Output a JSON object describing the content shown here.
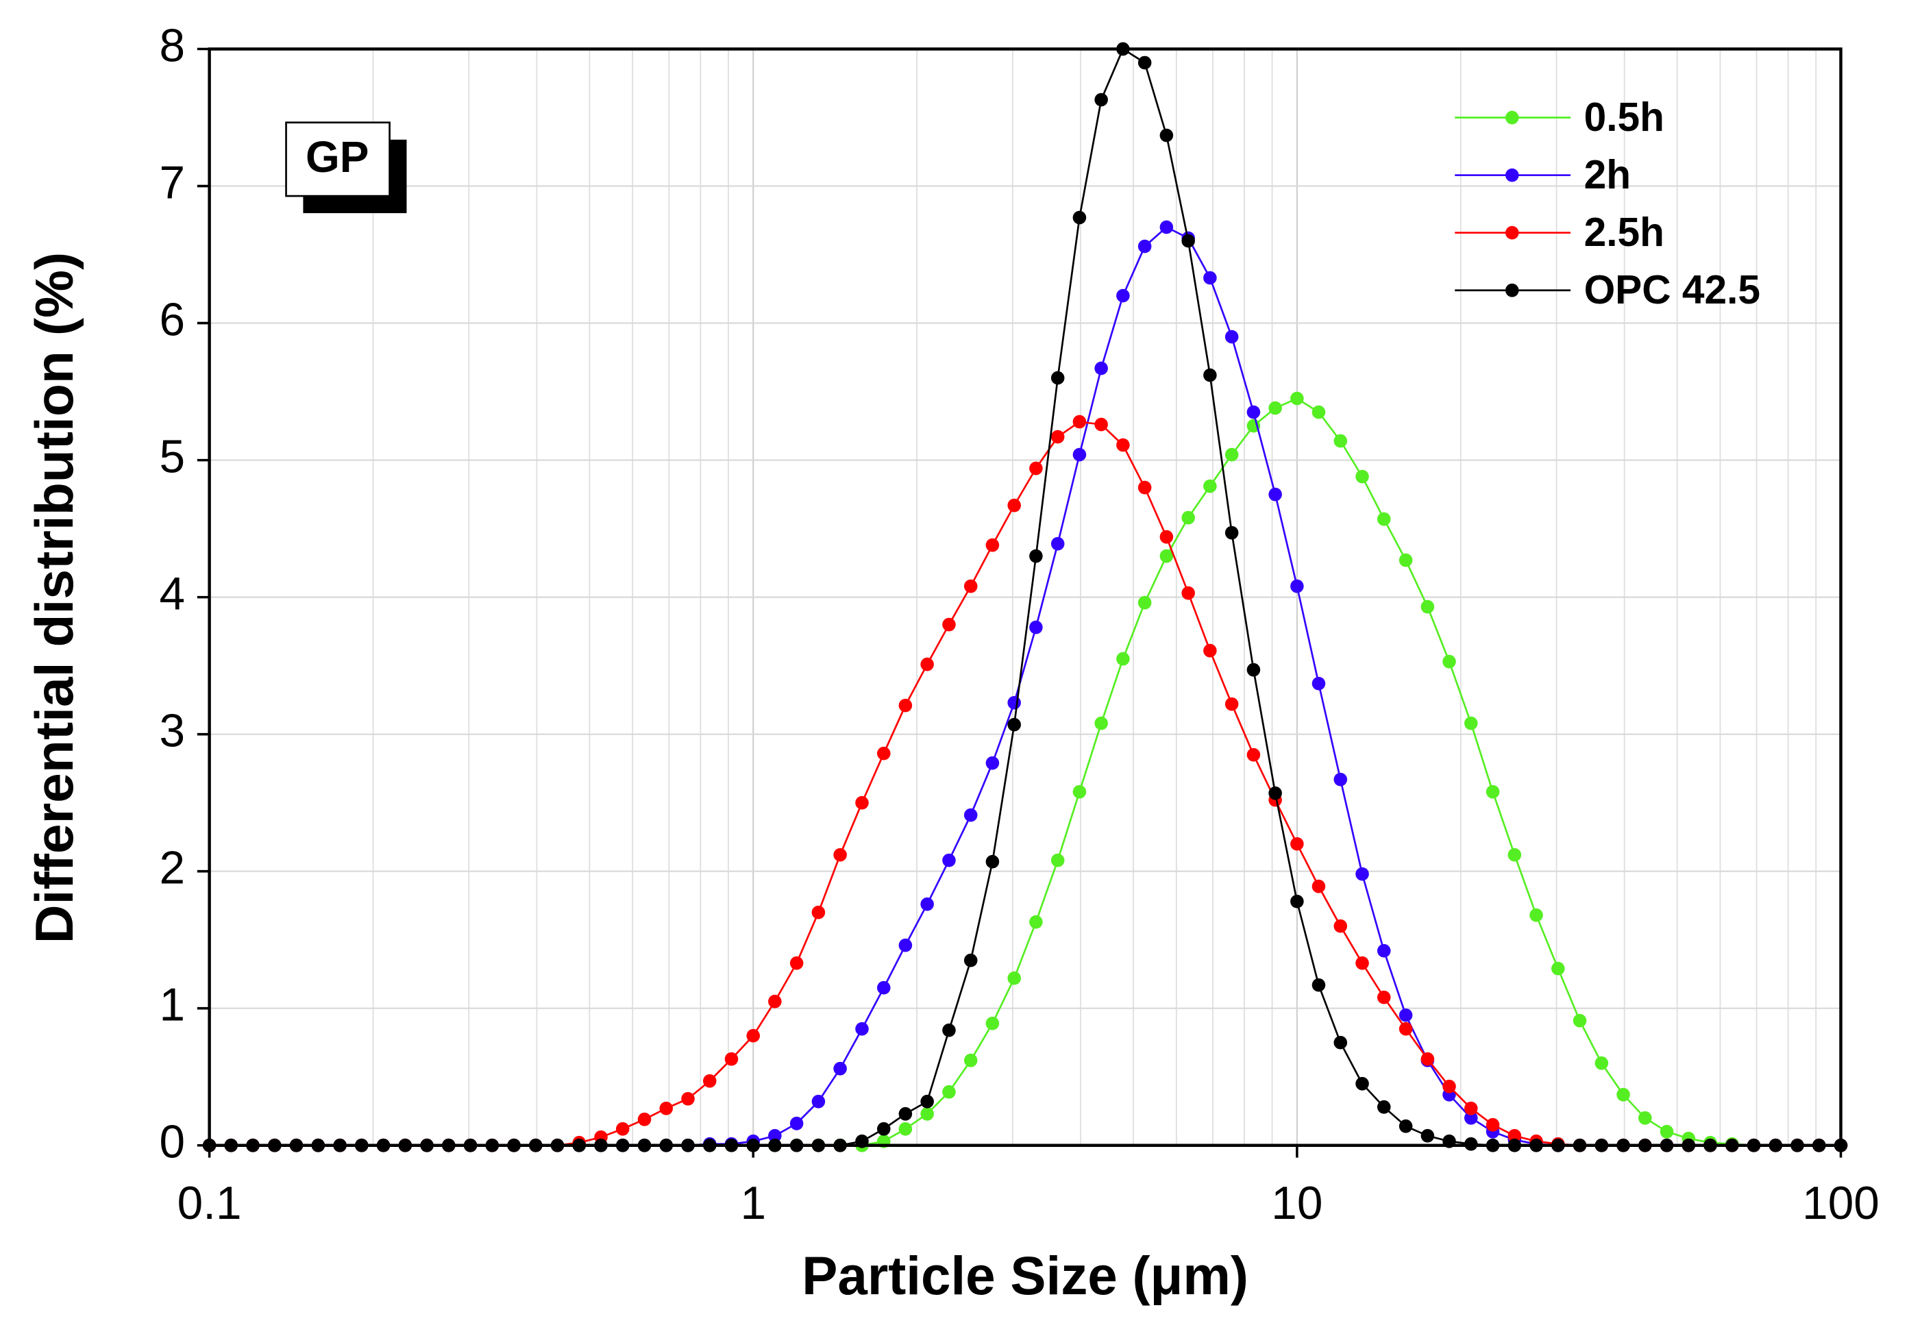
{
  "chart_data": {
    "type": "line",
    "xlabel": "Particle Size (μm)",
    "ylabel": "Differential distribution (%)",
    "annotations": [
      "GP"
    ],
    "xscale": "log",
    "xlim": [
      0.1,
      100
    ],
    "xticks": [
      0.1,
      1,
      10,
      100
    ],
    "xminorticks": [
      0.2,
      0.3,
      0.4,
      0.5,
      0.6,
      0.7,
      0.8,
      0.9,
      2,
      3,
      4,
      5,
      6,
      7,
      8,
      9,
      20,
      30,
      40,
      50,
      60,
      70,
      80,
      90
    ],
    "ylim": [
      0,
      8
    ],
    "yticks": [
      0,
      1,
      2,
      3,
      4,
      5,
      6,
      7,
      8
    ],
    "grid": true,
    "legend": "upper right",
    "x": [
      0.1,
      0.1096,
      0.1202,
      0.1318,
      0.1445,
      0.1585,
      0.1738,
      0.1905,
      0.2089,
      0.2291,
      0.2512,
      0.2754,
      0.302,
      0.3311,
      0.3631,
      0.3981,
      0.4365,
      0.4786,
      0.5248,
      0.5754,
      0.631,
      0.6918,
      0.7586,
      0.8318,
      0.912,
      1,
      1.096,
      1.202,
      1.318,
      1.445,
      1.585,
      1.738,
      1.905,
      2.089,
      2.291,
      2.512,
      2.754,
      3.02,
      3.311,
      3.631,
      3.981,
      4.365,
      4.786,
      5.248,
      5.754,
      6.31,
      6.918,
      7.586,
      8.318,
      9.12,
      10,
      10.96,
      12.02,
      13.18,
      14.45,
      15.85,
      17.38,
      19.05,
      20.89,
      22.91,
      25.12,
      27.54,
      30.2,
      33.11,
      36.31,
      39.81,
      43.65,
      47.86,
      52.48,
      57.54,
      63.1,
      69.18,
      75.86,
      83.18,
      91.2,
      100
    ],
    "series": [
      {
        "name": "0.5h",
        "color": "#55ee22",
        "values": [
          0,
          0,
          0,
          0,
          0,
          0,
          0,
          0,
          0,
          0,
          0,
          0,
          0,
          0,
          0,
          0,
          0,
          0,
          0,
          0,
          0,
          0,
          0,
          0,
          0,
          0,
          0,
          0,
          0,
          0,
          0,
          0.03,
          0.12,
          0.23,
          0.39,
          0.62,
          0.89,
          1.22,
          1.63,
          2.08,
          2.58,
          3.08,
          3.55,
          3.96,
          4.3,
          4.58,
          4.81,
          5.04,
          5.25,
          5.38,
          5.45,
          5.35,
          5.14,
          4.88,
          4.57,
          4.27,
          3.93,
          3.53,
          3.08,
          2.58,
          2.12,
          1.68,
          1.29,
          0.91,
          0.6,
          0.37,
          0.2,
          0.1,
          0.05,
          0.02,
          0.01,
          0,
          0,
          0,
          0,
          0
        ]
      },
      {
        "name": "2h",
        "color": "#3300ff",
        "values": [
          0,
          0,
          0,
          0,
          0,
          0,
          0,
          0,
          0,
          0,
          0,
          0,
          0,
          0,
          0,
          0,
          0,
          0,
          0,
          0,
          0,
          0,
          0,
          0.01,
          0.01,
          0.03,
          0.07,
          0.16,
          0.32,
          0.56,
          0.85,
          1.15,
          1.46,
          1.76,
          2.08,
          2.41,
          2.79,
          3.23,
          3.78,
          4.39,
          5.04,
          5.67,
          6.2,
          6.56,
          6.7,
          6.62,
          6.33,
          5.9,
          5.35,
          4.75,
          4.08,
          3.37,
          2.67,
          1.98,
          1.42,
          0.95,
          0.62,
          0.37,
          0.2,
          0.1,
          0.04,
          0.01,
          0,
          0,
          0,
          0,
          0,
          0,
          0,
          0,
          0,
          0,
          0,
          0,
          0,
          0
        ]
      },
      {
        "name": "2.5h",
        "color": "#ff0000",
        "values": [
          0,
          0,
          0,
          0,
          0,
          0,
          0,
          0,
          0,
          0,
          0,
          0,
          0,
          0,
          0,
          0,
          0,
          0.02,
          0.06,
          0.12,
          0.19,
          0.27,
          0.34,
          0.47,
          0.63,
          0.8,
          1.05,
          1.33,
          1.7,
          2.12,
          2.5,
          2.86,
          3.21,
          3.51,
          3.8,
          4.08,
          4.38,
          4.67,
          4.94,
          5.17,
          5.28,
          5.26,
          5.11,
          4.8,
          4.44,
          4.03,
          3.61,
          3.22,
          2.85,
          2.52,
          2.2,
          1.89,
          1.6,
          1.33,
          1.08,
          0.85,
          0.63,
          0.43,
          0.27,
          0.15,
          0.07,
          0.03,
          0.01,
          0,
          0,
          0,
          0,
          0,
          0,
          0,
          0,
          0,
          0,
          0,
          0,
          0
        ]
      },
      {
        "name": "OPC 42.5",
        "color": "#000000",
        "values": [
          0,
          0,
          0,
          0,
          0,
          0,
          0,
          0,
          0,
          0,
          0,
          0,
          0,
          0,
          0,
          0,
          0,
          0,
          0,
          0,
          0,
          0,
          0,
          0,
          0,
          0,
          0,
          0,
          0,
          0,
          0.03,
          0.12,
          0.23,
          0.32,
          0.84,
          1.35,
          2.07,
          3.07,
          4.3,
          5.6,
          6.77,
          7.63,
          8.0,
          7.9,
          7.37,
          6.6,
          5.62,
          4.47,
          3.47,
          2.57,
          1.78,
          1.17,
          0.75,
          0.45,
          0.28,
          0.14,
          0.07,
          0.03,
          0.01,
          0,
          0,
          0,
          0,
          0,
          0,
          0,
          0,
          0,
          0,
          0,
          0,
          0,
          0,
          0,
          0,
          0
        ]
      }
    ]
  }
}
